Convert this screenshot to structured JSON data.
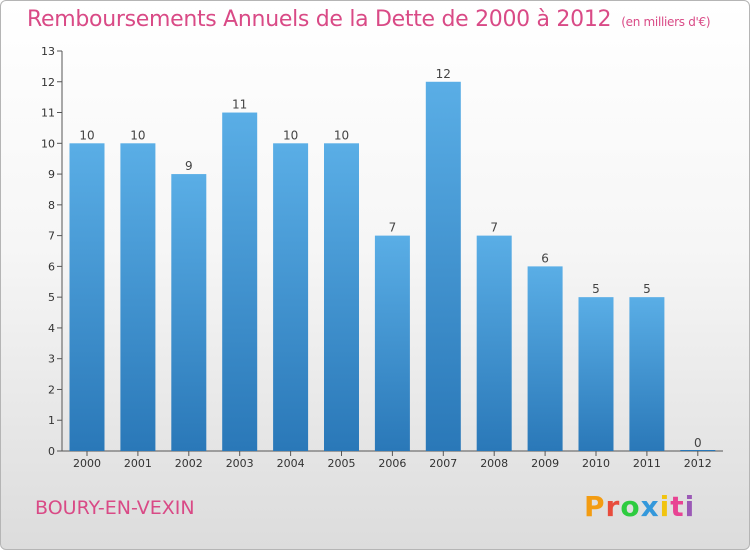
{
  "header": {
    "title": "Remboursements Annuels de la Dette de 2000 à 2012",
    "unit": "(en milliers d'€)"
  },
  "footer": {
    "commune": "BOURY-EN-VEXIN",
    "logo": "Proxiti"
  },
  "colors": {
    "title": "#d94a86",
    "bar_top": "#5aaee6",
    "bar_bottom": "#2a78b8",
    "logo_letters": [
      "#f39c12",
      "#e84c3d",
      "#2ecc40",
      "#3498db",
      "#f1c40f",
      "#e84393",
      "#9b59b6"
    ]
  },
  "chart_data": {
    "type": "bar",
    "title": "Remboursements Annuels de la Dette de 2000 à 2012",
    "subtitle": "(en milliers d'€)",
    "categories": [
      "2000",
      "2001",
      "2002",
      "2003",
      "2004",
      "2005",
      "2006",
      "2007",
      "2008",
      "2009",
      "2010",
      "2011",
      "2012"
    ],
    "values": [
      10,
      10,
      9,
      11,
      10,
      10,
      7,
      12,
      7,
      6,
      5,
      5,
      0
    ],
    "ylim": [
      0,
      13
    ],
    "yticks": [
      0,
      1,
      2,
      3,
      4,
      5,
      6,
      7,
      8,
      9,
      10,
      11,
      12,
      13
    ],
    "grid": false,
    "legend": "none"
  }
}
